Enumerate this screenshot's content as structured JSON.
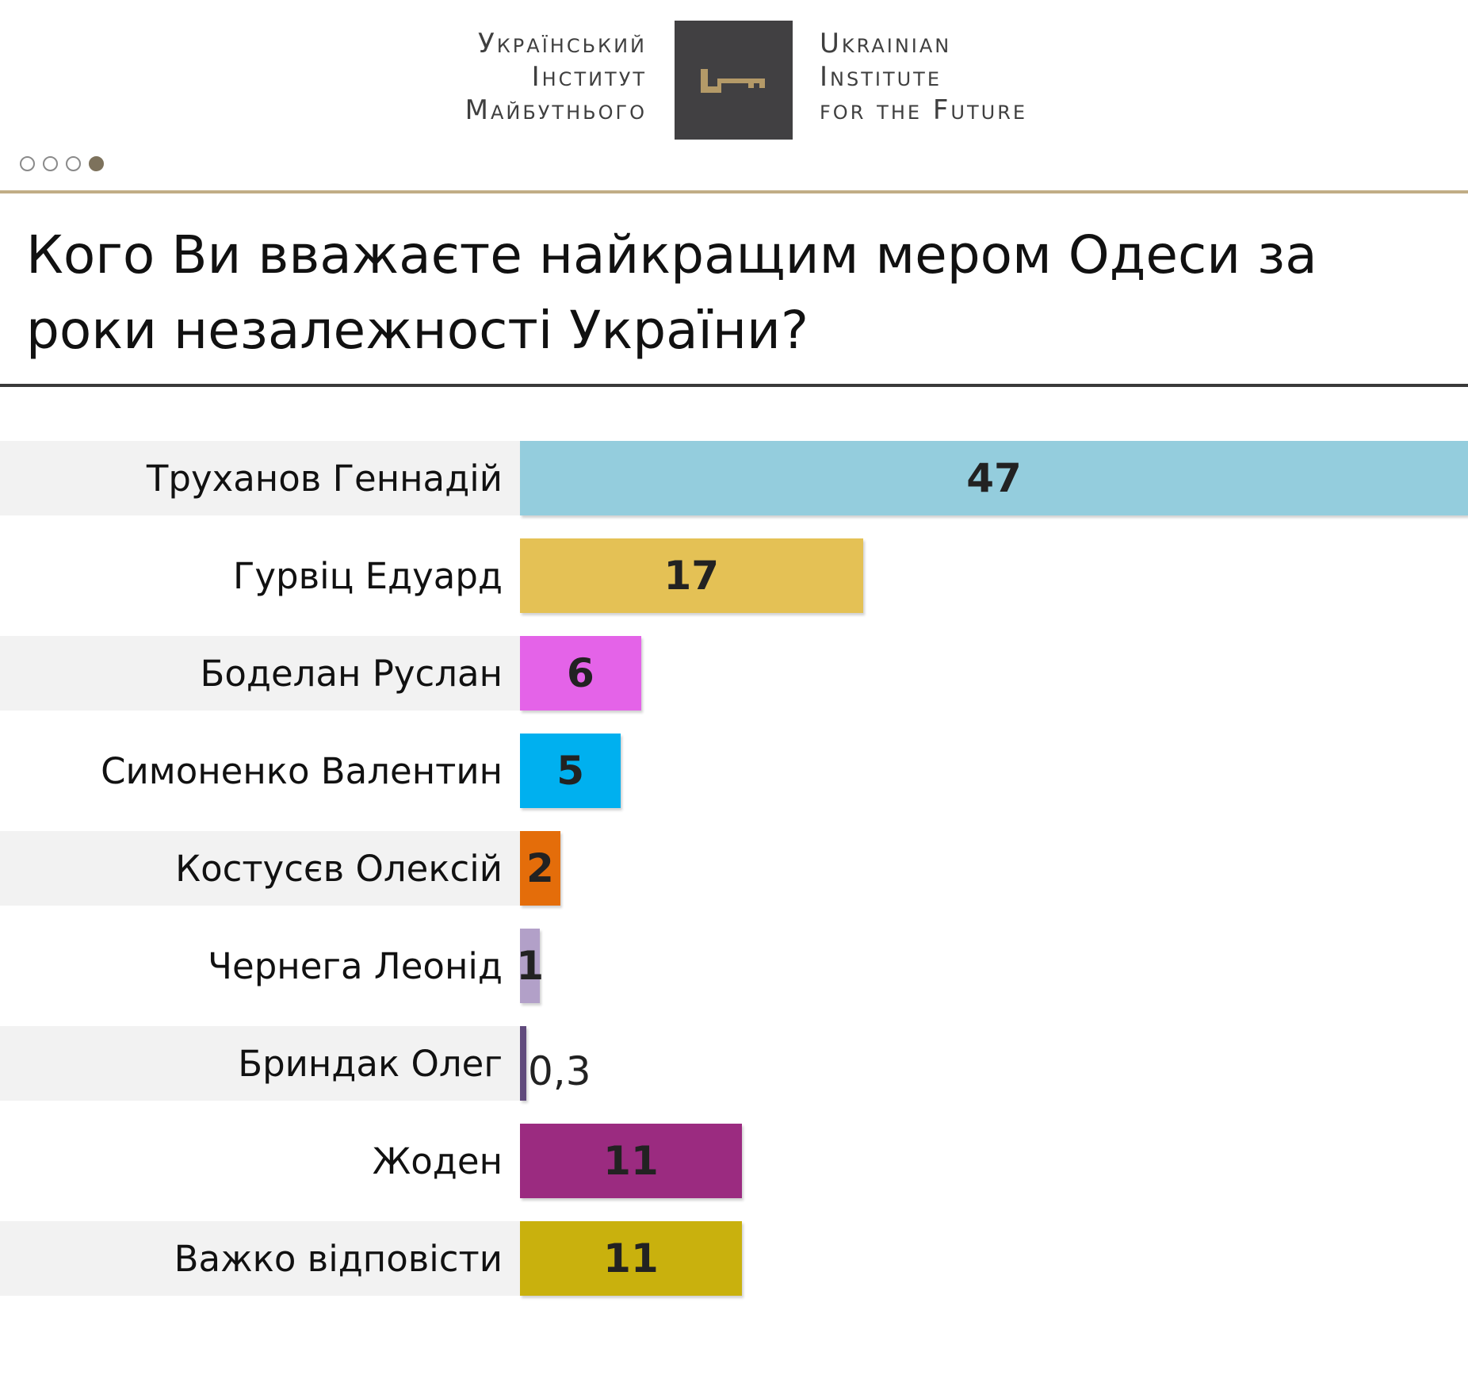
{
  "header": {
    "logo_ua": [
      "Український",
      "Інститут",
      "Майбутнього"
    ],
    "logo_en": [
      "Ukrainian",
      "Institute",
      "for the Future"
    ],
    "logo_icon": "key-icon",
    "slides_total": 4,
    "slide_active": 4
  },
  "colors": {
    "gold_rule": "#c1ad86",
    "logo_box": "#414042",
    "key": "#b49a68"
  },
  "chart_data": {
    "type": "bar",
    "orientation": "horizontal",
    "title": "Кого Ви вважаєте найкращим мером Одеси за роки незалежності України?",
    "categories": [
      "Труханов Геннадій",
      "Гурвіц Едуард",
      "Боделан Руслан",
      "Симоненко Валентин",
      "Костусєв Олексій",
      "Чернега Леонід",
      "Бриндак Олег",
      "Жоден",
      "Важко відповісти"
    ],
    "values": [
      47,
      17,
      6,
      5,
      2,
      1,
      0.3,
      11,
      11
    ],
    "value_labels": [
      "47",
      "17",
      "6",
      "5",
      "2",
      "1",
      "0,3",
      "11",
      "11"
    ],
    "colors": [
      "#94cddd",
      "#e4c155",
      "#e463e8",
      "#00b0ef",
      "#e46d0a",
      "#b2a0c8",
      "#604a7c",
      "#9b2b80",
      "#c9b10d"
    ],
    "xlim": [
      0,
      47
    ],
    "grid": false,
    "legend": "none"
  }
}
